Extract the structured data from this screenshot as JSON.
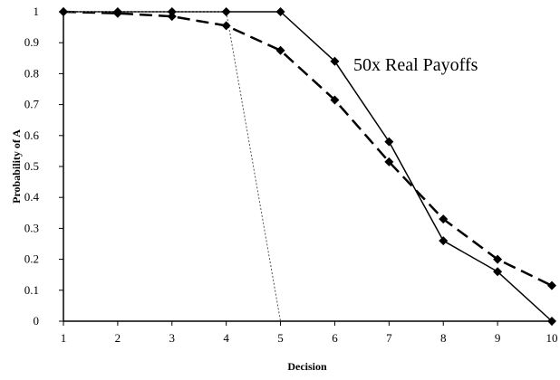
{
  "chart_data": {
    "type": "line",
    "title": "",
    "xlabel": "Decision",
    "ylabel": "Probability of A",
    "annotation": "50x Real Payoffs",
    "x": [
      1,
      2,
      3,
      4,
      5,
      6,
      7,
      8,
      9,
      10
    ],
    "xlim": [
      1,
      10
    ],
    "ylim": [
      0,
      1
    ],
    "x_ticks": [
      "1",
      "2",
      "3",
      "4",
      "5",
      "6",
      "7",
      "8",
      "9",
      "10"
    ],
    "y_ticks": [
      "0",
      "0.1",
      "0.2",
      "0.3",
      "0.4",
      "0.5",
      "0.6",
      "0.7",
      "0.8",
      "0.9",
      "1"
    ],
    "grid": false,
    "legend": "none",
    "series": [
      {
        "values": [
          1,
          1,
          1,
          1,
          1,
          0.84,
          0.58,
          0.26,
          0.16,
          0
        ],
        "style": "solid",
        "color": "#000000",
        "marker": "diamond"
      },
      {
        "values": [
          1,
          0.995,
          0.985,
          0.955,
          0.875,
          0.715,
          0.515,
          0.33,
          0.2,
          0.115
        ],
        "style": "dashed-bold",
        "color": "#000000",
        "marker": "diamond"
      },
      {
        "values": [
          1,
          1,
          1,
          1,
          0,
          0,
          0,
          0,
          0,
          0
        ],
        "style": "dotted-thin",
        "color": "#555555",
        "marker": "none"
      }
    ]
  }
}
